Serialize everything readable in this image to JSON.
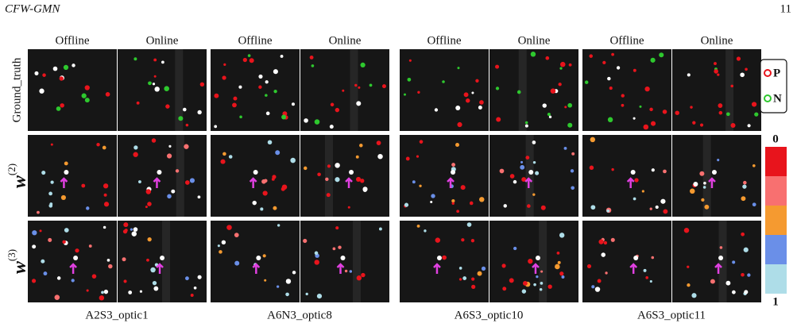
{
  "header": {
    "title": "CFW-GMN",
    "page_number": "11"
  },
  "column_headers": [
    "Offline",
    "Online",
    "Offline",
    "Online",
    "Offline",
    "Online",
    "Offline",
    "Online"
  ],
  "row_labels": [
    {
      "label": "Ground_truth"
    },
    {
      "label": "w",
      "superscript": "(2)"
    },
    {
      "label": "w",
      "superscript": "(3)"
    }
  ],
  "datasets": [
    "A2S3_optic1",
    "A6N3_optic8",
    "A6S3_optic10",
    "A6S3_optic11"
  ],
  "legend": [
    "P",
    "N"
  ],
  "colorbar": {
    "top": "0",
    "bottom": "1"
  }
}
